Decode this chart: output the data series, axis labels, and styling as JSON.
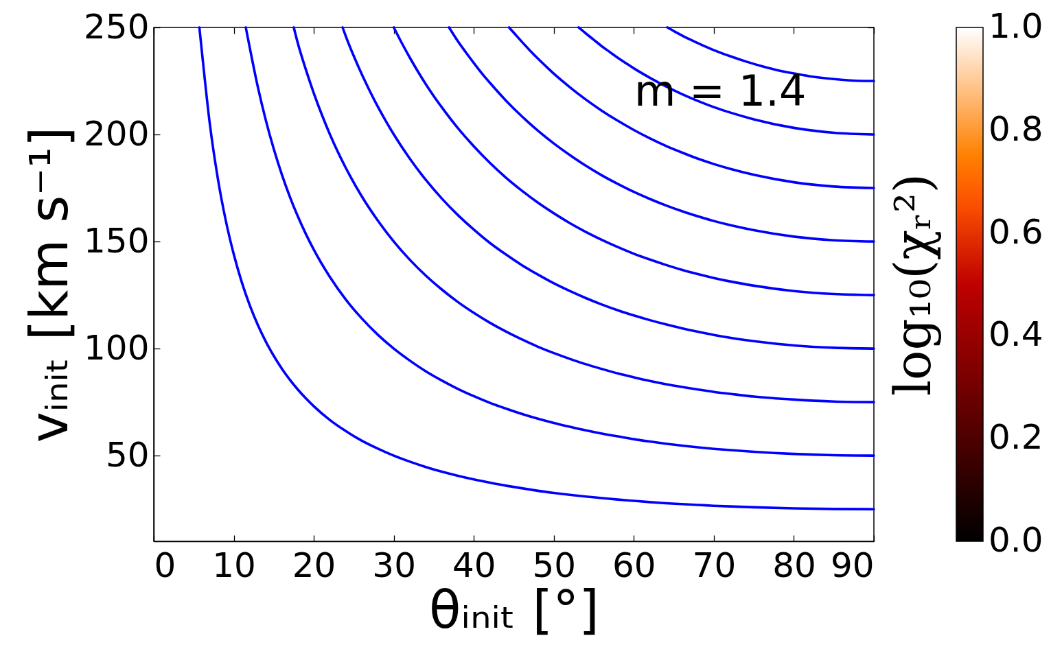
{
  "chart_data": {
    "type": "line",
    "xlabel": "θᵢₙᵢₜ [°]",
    "ylabel": "vᵢₙᵢₜ [km s⁻¹]",
    "clabel": "log₁₀(χᵣ²)",
    "annotations": [
      "m = 1.4"
    ],
    "xlim": [
      0,
      90
    ],
    "xticks": [
      0,
      10,
      20,
      30,
      40,
      50,
      60,
      70,
      80,
      90
    ],
    "ylim": [
      10,
      250
    ],
    "yticks": [
      50,
      100,
      150,
      200,
      250
    ],
    "clim": [
      0,
      1
    ],
    "cticks": [
      {
        "value": 0,
        "label": "0.0"
      },
      0.2,
      0.4,
      0.6,
      0.8,
      {
        "value": 1,
        "label": "1.0"
      }
    ],
    "series": [
      {
        "color": "#0000ff",
        "x": [
          5.7,
          6,
          7,
          8,
          9,
          10,
          11,
          12,
          13,
          14,
          15,
          16,
          17,
          18,
          19,
          20,
          22,
          24,
          26,
          28,
          30,
          32,
          34,
          36,
          38,
          40,
          42,
          44,
          46,
          48,
          50,
          52,
          54,
          56,
          58,
          60,
          62,
          64,
          66,
          68,
          70,
          72,
          75,
          80,
          85,
          90
        ],
        "values": [
          250,
          239.2,
          205.1,
          179.6,
          159.8,
          144.0,
          131.0,
          120.2,
          111.1,
          103.3,
          96.6,
          90.7,
          85.5,
          80.9,
          76.8,
          73.1,
          66.7,
          61.5,
          57.0,
          53.3,
          50.0,
          47.2,
          44.7,
          42.5,
          40.6,
          38.9,
          37.4,
          36.0,
          34.8,
          33.6,
          32.6,
          31.7,
          30.9,
          30.2,
          29.5,
          28.9,
          28.3,
          27.8,
          27.4,
          27.0,
          26.6,
          26.3,
          25.9,
          25.4,
          25.1,
          25.0
        ]
      },
      {
        "color": "#0000ff",
        "x": [
          11.5,
          12,
          13,
          14,
          15,
          16,
          17,
          18,
          19,
          20,
          22,
          24,
          26,
          28,
          30,
          32,
          34,
          36,
          38,
          40,
          42,
          44,
          46,
          48,
          50,
          52,
          54,
          56,
          58,
          60,
          62,
          64,
          66,
          68,
          70,
          72,
          75,
          80,
          85,
          90
        ],
        "values": [
          250,
          240.5,
          222.3,
          206.7,
          193.2,
          181.4,
          171.0,
          161.8,
          153.6,
          146.2,
          133.5,
          122.9,
          114.1,
          106.5,
          100.0,
          94.4,
          89.4,
          85.1,
          81.2,
          77.8,
          74.7,
          72.0,
          69.5,
          67.3,
          65.3,
          63.5,
          61.8,
          60.3,
          59.0,
          57.7,
          56.6,
          55.6,
          54.7,
          53.9,
          53.2,
          52.6,
          51.8,
          50.8,
          50.2,
          50.0
        ]
      },
      {
        "color": "#0000ff",
        "x": [
          17.5,
          18,
          19,
          20,
          21,
          22,
          23,
          24,
          26,
          28,
          30,
          32,
          34,
          36,
          38,
          40,
          42,
          44,
          46,
          48,
          50,
          52,
          54,
          56,
          58,
          60,
          62,
          64,
          66,
          68,
          70,
          72,
          75,
          80,
          85,
          90
        ],
        "values": [
          250,
          242.7,
          230.4,
          219.3,
          209.3,
          200.2,
          191.9,
          184.4,
          171.1,
          159.8,
          150.0,
          141.5,
          134.1,
          127.6,
          121.8,
          116.7,
          112.1,
          108.0,
          104.3,
          100.9,
          97.9,
          95.2,
          92.7,
          90.5,
          88.4,
          86.6,
          84.9,
          83.4,
          82.1,
          80.9,
          79.8,
          78.9,
          77.6,
          76.2,
          75.3,
          75.0
        ]
      },
      {
        "color": "#0000ff",
        "x": [
          23.6,
          24,
          25,
          26,
          27,
          28,
          29,
          30,
          32,
          34,
          36,
          38,
          40,
          42,
          44,
          46,
          48,
          50,
          52,
          54,
          56,
          58,
          60,
          62,
          64,
          66,
          68,
          70,
          72,
          75,
          80,
          85,
          90
        ],
        "values": [
          250,
          245.9,
          236.6,
          228.1,
          220.3,
          213.0,
          206.3,
          200.0,
          188.7,
          178.8,
          170.1,
          162.4,
          155.6,
          149.4,
          144.0,
          139.0,
          134.6,
          130.5,
          126.9,
          123.6,
          120.6,
          117.9,
          115.5,
          113.3,
          111.3,
          109.5,
          107.9,
          106.4,
          105.1,
          103.5,
          101.5,
          100.4,
          100.0
        ]
      },
      {
        "color": "#0000ff",
        "x": [
          30,
          31,
          32,
          33,
          34,
          35,
          36,
          38,
          40,
          42,
          44,
          46,
          48,
          50,
          52,
          54,
          56,
          58,
          60,
          62,
          64,
          66,
          68,
          70,
          72,
          75,
          80,
          85,
          90
        ],
        "values": [
          250,
          242.7,
          235.9,
          229.5,
          223.5,
          217.9,
          212.7,
          203.0,
          194.5,
          186.8,
          179.9,
          173.8,
          168.2,
          163.2,
          158.6,
          154.5,
          150.8,
          147.4,
          144.3,
          141.6,
          139.1,
          136.8,
          134.8,
          133.0,
          131.4,
          129.4,
          126.9,
          125.5,
          125.0
        ]
      },
      {
        "color": "#0000ff",
        "x": [
          36.9,
          38,
          39,
          40,
          41,
          42,
          44,
          46,
          48,
          50,
          52,
          54,
          56,
          58,
          60,
          62,
          64,
          66,
          68,
          70,
          72,
          75,
          80,
          85,
          90
        ],
        "values": [
          250,
          243.6,
          238.4,
          233.4,
          228.6,
          224.2,
          215.9,
          208.5,
          201.8,
          195.8,
          190.4,
          185.4,
          180.9,
          176.9,
          173.2,
          169.9,
          166.9,
          164.2,
          161.8,
          159.6,
          157.7,
          155.3,
          152.3,
          150.6,
          150.0
        ]
      },
      {
        "color": "#0000ff",
        "x": [
          44.4,
          45,
          46,
          47,
          48,
          49,
          50,
          52,
          54,
          56,
          58,
          60,
          62,
          64,
          66,
          68,
          70,
          72,
          75,
          80,
          85,
          90
        ],
        "values": [
          250,
          247.5,
          243.3,
          239.3,
          235.5,
          231.9,
          228.4,
          222.1,
          216.3,
          211.1,
          206.4,
          202.1,
          198.2,
          194.7,
          191.6,
          188.7,
          186.2,
          184.0,
          181.2,
          177.7,
          175.7,
          175.0
        ]
      },
      {
        "color": "#0000ff",
        "x": [
          53.1,
          54,
          55,
          56,
          57,
          58,
          59,
          60,
          62,
          64,
          66,
          68,
          70,
          72,
          75,
          80,
          85,
          90
        ],
        "values": [
          250,
          247.2,
          244.2,
          241.2,
          238.5,
          235.8,
          233.3,
          230.9,
          226.5,
          222.5,
          218.9,
          215.7,
          212.8,
          210.3,
          207.1,
          203.1,
          200.8,
          200.0
        ]
      },
      {
        "color": "#0000ff",
        "x": [
          64.2,
          65,
          66,
          67,
          68,
          69,
          70,
          72,
          74,
          76,
          78,
          80,
          82,
          85,
          88,
          90
        ],
        "values": [
          250,
          248.3,
          246.3,
          244.4,
          242.7,
          241.0,
          239.4,
          236.6,
          234.1,
          231.9,
          230.0,
          228.5,
          227.2,
          225.9,
          225.1,
          225.0
        ]
      }
    ]
  }
}
